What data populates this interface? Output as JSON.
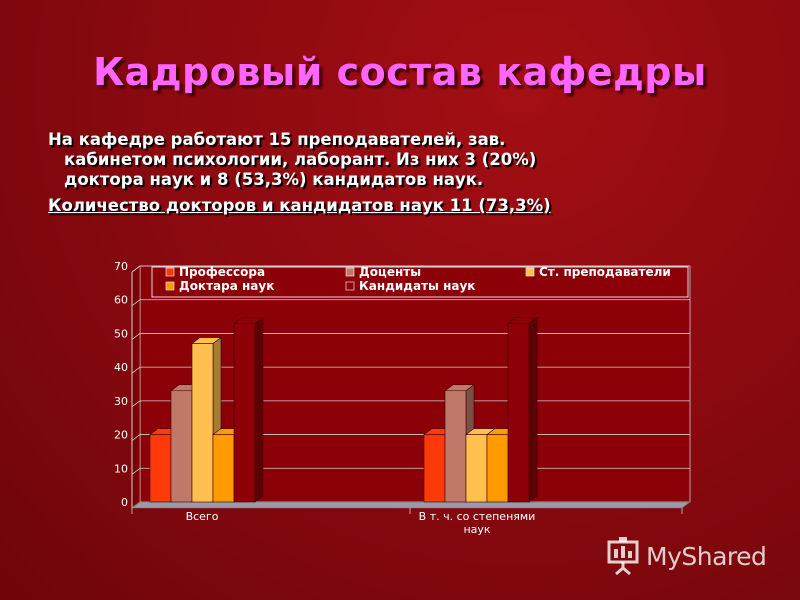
{
  "slide": {
    "title": "Кадровый состав кафедры",
    "paragraph1": [
      "На кафедре работают 15 преподавателей, зав.",
      "кабинетом психологии, лаборант. Из них 3 (20%)",
      "доктора наук и 8 (53,3%) кандидатов наук."
    ],
    "paragraph2": "Количество докторов и кандидатов наук 11 (73,3%)"
  },
  "chart_data": {
    "type": "bar",
    "categories": [
      "Всего",
      "В т. ч. со степенями наук"
    ],
    "category_label_lines": [
      [
        "Всего"
      ],
      [
        "В т. ч. со степенями",
        "наук"
      ]
    ],
    "series": [
      {
        "name": "Профессора",
        "values": [
          20,
          20
        ],
        "color": "#ff3a0a"
      },
      {
        "name": "Доценты",
        "values": [
          33,
          33
        ],
        "color": "#c07868"
      },
      {
        "name": "Ст. преподаватели",
        "values": [
          47,
          20
        ],
        "color": "#ffc050"
      },
      {
        "name": "Доктара наук",
        "values": [
          20,
          20
        ],
        "color": "#ff9a00"
      },
      {
        "name": "Кандидаты наук",
        "values": [
          53,
          53
        ],
        "color": "#8e0008"
      }
    ],
    "ylim": [
      0,
      70
    ],
    "yticks": [
      0,
      10,
      20,
      30,
      40,
      50,
      60,
      70
    ],
    "grid": true,
    "legend": "top"
  },
  "watermark": {
    "text": "MyShared",
    "icon": "presentation-board-icon"
  }
}
